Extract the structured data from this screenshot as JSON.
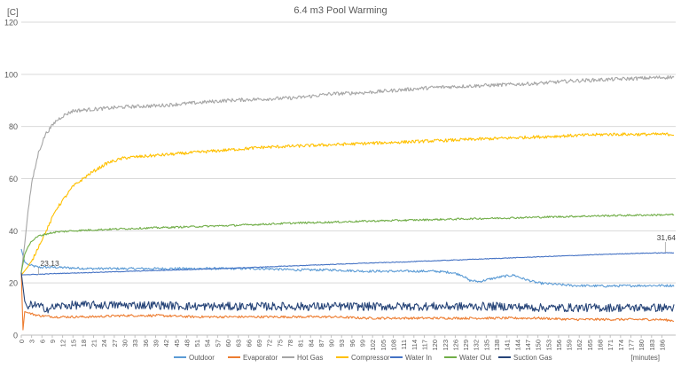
{
  "chart_data": {
    "type": "line",
    "title": "6.4 m3 Pool Warming",
    "ylabel": "[C]",
    "xlabel": "[minutes]",
    "ylim": [
      0,
      120
    ],
    "yticks": [
      0,
      20,
      40,
      60,
      80,
      100,
      120
    ],
    "xlim": [
      0,
      190
    ],
    "xtick_start": 0,
    "xtick_step": 3,
    "xtick_end": 187,
    "grid": "horizontal",
    "legend_placement": "bottom",
    "series": [
      {
        "name": "Outdoor",
        "color": "#5b9bd5",
        "x": [
          0,
          1,
          2,
          5,
          10,
          20,
          30,
          40,
          50,
          60,
          70,
          80,
          90,
          100,
          110,
          120,
          125,
          128,
          130,
          133,
          136,
          140,
          143,
          146,
          150,
          155,
          160,
          170,
          180,
          190
        ],
        "values": [
          33,
          28,
          27,
          26,
          26,
          25.5,
          25.5,
          25.5,
          25.5,
          25.5,
          25.5,
          25,
          25,
          24.5,
          24.5,
          24.5,
          24,
          23,
          21,
          20.5,
          21.5,
          22.5,
          23,
          21.5,
          20,
          19.5,
          19,
          18.8,
          19,
          19
        ]
      },
      {
        "name": "Evaporator",
        "color": "#ed7d31",
        "x": [
          0,
          0.5,
          1,
          2,
          5,
          10,
          20,
          30,
          40,
          50,
          60,
          70,
          80,
          90,
          100,
          110,
          120,
          130,
          140,
          150,
          160,
          170,
          180,
          185,
          190
        ],
        "values": [
          24,
          2,
          9,
          8.5,
          7.5,
          7,
          7,
          7.5,
          7.5,
          7,
          7,
          7,
          7,
          7,
          6.5,
          6.5,
          6.5,
          6.5,
          6.5,
          6.5,
          6,
          6,
          6,
          6,
          5.5
        ]
      },
      {
        "name": "Hot Gas",
        "color": "#a5a5a5",
        "x": [
          0,
          1,
          2,
          3,
          5,
          7,
          10,
          12,
          15,
          20,
          30,
          40,
          50,
          60,
          70,
          80,
          90,
          100,
          110,
          120,
          130,
          140,
          150,
          160,
          170,
          180,
          190
        ],
        "values": [
          24,
          35,
          48,
          58,
          70,
          77,
          82,
          84,
          86,
          86.5,
          87.5,
          88,
          89,
          90,
          90.5,
          91,
          92.5,
          93,
          94,
          95,
          95.5,
          96,
          96.5,
          97.5,
          98,
          98.5,
          99
        ]
      },
      {
        "name": "Compressor",
        "color": "#ffc000",
        "x": [
          0,
          3,
          5,
          8,
          10,
          15,
          20,
          25,
          30,
          40,
          50,
          60,
          70,
          80,
          90,
          100,
          110,
          120,
          130,
          140,
          150,
          160,
          170,
          180,
          190
        ],
        "values": [
          23,
          28,
          34,
          42,
          48,
          57,
          62,
          66,
          68,
          69,
          70,
          71,
          72,
          72.5,
          73,
          73.5,
          74,
          74.5,
          75,
          75.5,
          76,
          76.5,
          77,
          77,
          77
        ]
      },
      {
        "name": "Water In",
        "color": "#4472c4",
        "x": [
          0,
          5,
          10,
          20,
          30,
          40,
          50,
          60,
          70,
          80,
          90,
          100,
          110,
          120,
          130,
          140,
          150,
          160,
          170,
          180,
          190
        ],
        "values": [
          23.1,
          23.3,
          23.6,
          24,
          24.4,
          24.8,
          25.2,
          25.6,
          26.1,
          26.6,
          27.1,
          27.6,
          28,
          28.5,
          29,
          29.5,
          30,
          30.5,
          31,
          31.4,
          31.6
        ]
      },
      {
        "name": "Water Out",
        "color": "#70ad47",
        "x": [
          0,
          1,
          2,
          3,
          5,
          8,
          10,
          15,
          20,
          30,
          40,
          50,
          60,
          70,
          80,
          90,
          100,
          110,
          120,
          130,
          140,
          150,
          160,
          170,
          180,
          190
        ],
        "values": [
          24,
          31,
          34,
          36,
          38,
          39,
          39.5,
          40,
          40.3,
          40.8,
          41.2,
          41.6,
          42,
          42.5,
          43,
          43.3,
          43.7,
          44,
          44.3,
          44.6,
          44.9,
          45.2,
          45.5,
          45.8,
          46,
          46.2
        ]
      },
      {
        "name": "Suction Gas",
        "color": "#264478",
        "x": [
          0,
          1,
          2,
          3,
          5,
          8,
          10,
          15,
          20,
          30,
          40,
          50,
          60,
          70,
          80,
          90,
          100,
          110,
          120,
          130,
          140,
          150,
          160,
          170,
          180,
          190
        ],
        "values": [
          24,
          13,
          10,
          12,
          11,
          10,
          11,
          11.5,
          11.5,
          11.5,
          11.5,
          11,
          11,
          11,
          11,
          11,
          11,
          11,
          11,
          11,
          11,
          10.5,
          10.5,
          10.5,
          10.5,
          10.5
        ]
      }
    ],
    "annotations": [
      {
        "text": "23,13",
        "x": 5,
        "y": 23.13,
        "series": "Water In"
      },
      {
        "text": "31,64",
        "x": 187,
        "y": 31.64,
        "series": "Water In"
      }
    ]
  }
}
